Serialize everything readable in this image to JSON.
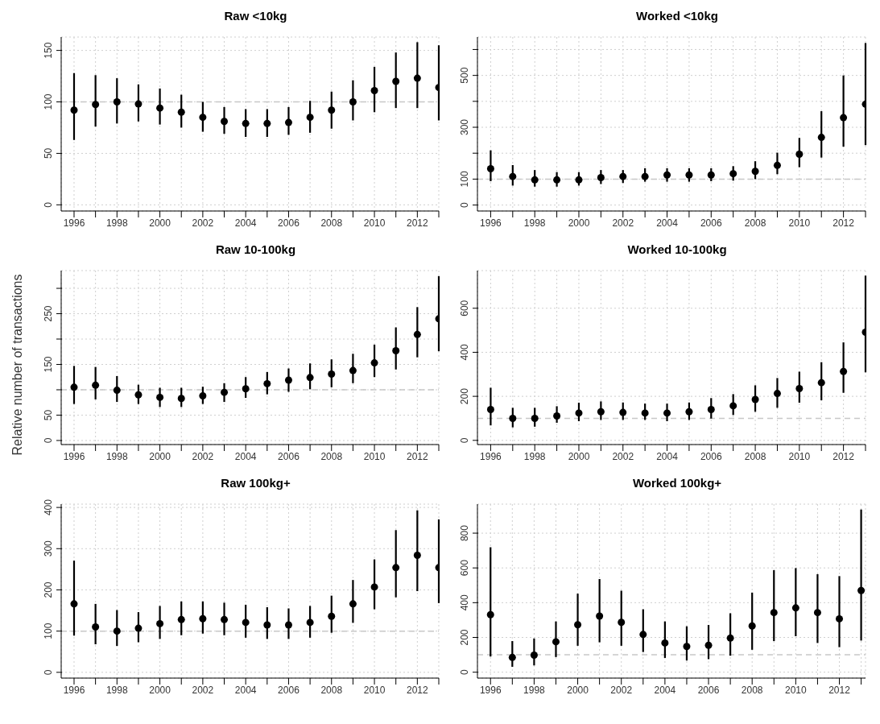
{
  "chart_data": [
    {
      "type": "scatter",
      "title": "Raw <10kg",
      "x": [
        1996,
        1997,
        1998,
        1999,
        2000,
        2001,
        2002,
        2003,
        2004,
        2005,
        2006,
        2007,
        2008,
        2009,
        2010,
        2011,
        2012,
        2013
      ],
      "marker": "circle",
      "grid": true,
      "xlim": [
        1995.4,
        2013
      ],
      "xticks": [
        1996,
        {
          "value": 1997,
          "label": null
        },
        1998,
        {
          "value": 1999,
          "label": null
        },
        2000,
        {
          "value": 2001,
          "label": null
        },
        2002,
        {
          "value": 2003,
          "label": null
        },
        2004,
        {
          "value": 2005,
          "label": null
        },
        2006,
        {
          "value": 2007,
          "label": null
        },
        2008,
        {
          "value": 2009,
          "label": null
        },
        2010,
        {
          "value": 2011,
          "label": null
        },
        2012,
        {
          "value": 2013,
          "label": null
        }
      ],
      "ylim": [
        -6,
        163
      ],
      "yticks": [
        0,
        50,
        100,
        150
      ],
      "ref_lines": [
        {
          "axis": "y",
          "value": 100,
          "label": null,
          "color": "#c8c8c8",
          "line_style": "dashed"
        }
      ],
      "series": [
        {
          "color": "#000000",
          "values": [
            92,
            97.5,
            100,
            98,
            94,
            90,
            85,
            81,
            79,
            79,
            80,
            85,
            92,
            100,
            111,
            120,
            123,
            114
          ],
          "errors": [
            [
              63,
              128
            ],
            [
              76,
              126
            ],
            [
              79,
              123
            ],
            [
              81,
              117
            ],
            [
              78,
              113
            ],
            [
              75,
              107
            ],
            [
              71,
              100
            ],
            [
              69,
              95
            ],
            [
              66,
              93
            ],
            [
              66,
              93
            ],
            [
              68,
              95
            ],
            [
              70,
              101
            ],
            [
              74,
              110
            ],
            [
              82,
              121
            ],
            [
              90,
              134
            ],
            [
              94,
              148
            ],
            [
              94,
              158
            ],
            [
              82,
              155
            ]
          ]
        }
      ]
    },
    {
      "type": "scatter",
      "title": "Worked <10kg",
      "x": [
        1996,
        1997,
        1998,
        1999,
        2000,
        2001,
        2002,
        2003,
        2004,
        2005,
        2006,
        2007,
        2008,
        2009,
        2010,
        2011,
        2012,
        2013
      ],
      "marker": "circle",
      "grid": true,
      "xlim": [
        1995.4,
        2013
      ],
      "xticks": [
        1996,
        {
          "value": 1997,
          "label": null
        },
        1998,
        {
          "value": 1999,
          "label": null
        },
        2000,
        {
          "value": 2001,
          "label": null
        },
        2002,
        {
          "value": 2003,
          "label": null
        },
        2004,
        {
          "value": 2005,
          "label": null
        },
        2006,
        {
          "value": 2007,
          "label": null
        },
        2008,
        {
          "value": 2009,
          "label": null
        },
        2010,
        {
          "value": 2011,
          "label": null
        },
        2012,
        {
          "value": 2013,
          "label": null
        }
      ],
      "ylim": [
        -23,
        648
      ],
      "yticks": [
        0,
        100,
        {
          "value": 200,
          "label": null
        },
        300,
        {
          "value": 400,
          "label": null
        },
        500,
        {
          "value": 600,
          "label": null
        }
      ],
      "ref_lines": [
        {
          "axis": "y",
          "value": 100,
          "label": null,
          "color": "#c8c8c8",
          "line_style": "dashed"
        }
      ],
      "series": [
        {
          "color": "#000000",
          "values": [
            140,
            110,
            97,
            97,
            97,
            106,
            110,
            110,
            116,
            116,
            116,
            121,
            130,
            153,
            196,
            261,
            337,
            389
          ],
          "errors": [
            [
              92,
              211
            ],
            [
              75,
              154
            ],
            [
              71,
              135
            ],
            [
              71,
              127
            ],
            [
              75,
              127
            ],
            [
              81,
              135
            ],
            [
              85,
              135
            ],
            [
              90,
              142
            ],
            [
              90,
              142
            ],
            [
              90,
              142
            ],
            [
              92,
              142
            ],
            [
              94,
              150
            ],
            [
              100,
              169
            ],
            [
              119,
              202
            ],
            [
              146,
              259
            ],
            [
              183,
              362
            ],
            [
              225,
              500
            ],
            [
              231,
              625
            ]
          ]
        }
      ]
    },
    {
      "type": "scatter",
      "title": "Raw 10-100kg",
      "ylabel": "Relative number of transactions",
      "x": [
        1996,
        1997,
        1998,
        1999,
        2000,
        2001,
        2002,
        2003,
        2004,
        2005,
        2006,
        2007,
        2008,
        2009,
        2010,
        2011,
        2012,
        2013
      ],
      "marker": "circle",
      "grid": true,
      "xlim": [
        1995.4,
        2013
      ],
      "xticks": [
        1996,
        {
          "value": 1997,
          "label": null
        },
        1998,
        {
          "value": 1999,
          "label": null
        },
        2000,
        {
          "value": 2001,
          "label": null
        },
        2002,
        {
          "value": 2003,
          "label": null
        },
        2004,
        {
          "value": 2005,
          "label": null
        },
        2006,
        {
          "value": 2007,
          "label": null
        },
        2008,
        {
          "value": 2009,
          "label": null
        },
        2010,
        {
          "value": 2011,
          "label": null
        },
        2012,
        {
          "value": 2013,
          "label": null
        }
      ],
      "ylim": [
        -8,
        335
      ],
      "yticks": [
        0,
        50,
        {
          "value": 100,
          "label": null
        },
        150,
        {
          "value": 200,
          "label": null
        },
        250,
        {
          "value": 300,
          "label": null
        }
      ],
      "ref_lines": [
        {
          "axis": "y",
          "value": 100,
          "label": null,
          "color": "#c8c8c8",
          "line_style": "dashed"
        }
      ],
      "series": [
        {
          "color": "#000000",
          "values": [
            105,
            109,
            99,
            90,
            85,
            83,
            88,
            95,
            102,
            112,
            119,
            124,
            131,
            138,
            153,
            177,
            209,
            240
          ],
          "errors": [
            [
              72,
              147
            ],
            [
              81,
              145
            ],
            [
              76,
              127
            ],
            [
              72,
              110
            ],
            [
              66,
              104
            ],
            [
              66,
              104
            ],
            [
              72,
              106
            ],
            [
              76,
              113
            ],
            [
              84,
              125
            ],
            [
              91,
              135
            ],
            [
              96,
              142
            ],
            [
              101,
              152
            ],
            [
              105,
              160
            ],
            [
              113,
              171
            ],
            [
              125,
              189
            ],
            [
              140,
              223
            ],
            [
              164,
              263
            ],
            [
              176,
              324
            ]
          ]
        }
      ]
    },
    {
      "type": "scatter",
      "title": "Worked 10-100kg",
      "x": [
        1996,
        1997,
        1998,
        1999,
        2000,
        2001,
        2002,
        2003,
        2004,
        2005,
        2006,
        2007,
        2008,
        2009,
        2010,
        2011,
        2012,
        2013
      ],
      "marker": "circle",
      "grid": true,
      "xlim": [
        1995.4,
        2013
      ],
      "xticks": [
        1996,
        {
          "value": 1997,
          "label": null
        },
        1998,
        {
          "value": 1999,
          "label": null
        },
        2000,
        {
          "value": 2001,
          "label": null
        },
        2002,
        {
          "value": 2003,
          "label": null
        },
        2004,
        {
          "value": 2005,
          "label": null
        },
        2006,
        {
          "value": 2007,
          "label": null
        },
        2008,
        {
          "value": 2009,
          "label": null
        },
        2010,
        {
          "value": 2011,
          "label": null
        },
        2012,
        {
          "value": 2013,
          "label": null
        }
      ],
      "ylim": [
        -19,
        771
      ],
      "yticks": [
        0,
        200,
        400,
        600
      ],
      "ref_lines": [
        {
          "axis": "y",
          "value": 100,
          "label": null,
          "color": "#c8c8c8",
          "line_style": "dashed"
        }
      ],
      "series": [
        {
          "color": "#000000",
          "values": [
            140,
            100,
            100,
            111,
            124,
            130,
            127,
            124,
            124,
            130,
            140,
            157,
            186,
            213,
            235,
            262,
            313,
            491
          ],
          "errors": [
            [
              68,
              239
            ],
            [
              59,
              148
            ],
            [
              62,
              148
            ],
            [
              80,
              155
            ],
            [
              87,
              171
            ],
            [
              93,
              177
            ],
            [
              93,
              172
            ],
            [
              93,
              167
            ],
            [
              87,
              167
            ],
            [
              93,
              172
            ],
            [
              99,
              192
            ],
            [
              115,
              210
            ],
            [
              130,
              250
            ],
            [
              148,
              283
            ],
            [
              171,
              312
            ],
            [
              182,
              355
            ],
            [
              216,
              445
            ],
            [
              309,
              748
            ]
          ]
        }
      ]
    },
    {
      "type": "scatter",
      "title": "Raw 100kg+",
      "x": [
        1996,
        1997,
        1998,
        1999,
        2000,
        2001,
        2002,
        2003,
        2004,
        2005,
        2006,
        2007,
        2008,
        2009,
        2010,
        2011,
        2012,
        2013
      ],
      "marker": "circle",
      "grid": true,
      "xlim": [
        1995.4,
        2013
      ],
      "xticks": [
        1996,
        {
          "value": 1997,
          "label": null
        },
        1998,
        {
          "value": 1999,
          "label": null
        },
        2000,
        {
          "value": 2001,
          "label": null
        },
        2002,
        {
          "value": 2003,
          "label": null
        },
        2004,
        {
          "value": 2005,
          "label": null
        },
        2006,
        {
          "value": 2007,
          "label": null
        },
        2008,
        {
          "value": 2009,
          "label": null
        },
        2010,
        {
          "value": 2011,
          "label": null
        },
        2012,
        {
          "value": 2013,
          "label": null
        }
      ],
      "ylim": [
        -14,
        408
      ],
      "yticks": [
        0,
        100,
        200,
        300,
        400
      ],
      "ref_lines": [
        {
          "axis": "y",
          "value": 100,
          "label": null,
          "color": "#c8c8c8",
          "line_style": "dashed"
        }
      ],
      "series": [
        {
          "color": "#000000",
          "values": [
            166,
            110,
            100,
            107,
            118,
            128,
            130,
            128,
            121,
            115,
            115,
            121,
            136,
            166,
            207,
            254,
            284,
            254
          ],
          "errors": [
            [
              89,
              271
            ],
            [
              68,
              166
            ],
            [
              64,
              151
            ],
            [
              73,
              146
            ],
            [
              81,
              161
            ],
            [
              90,
              172
            ],
            [
              94,
              172
            ],
            [
              90,
              169
            ],
            [
              84,
              164
            ],
            [
              81,
              158
            ],
            [
              81,
              155
            ],
            [
              84,
              161
            ],
            [
              96,
              186
            ],
            [
              120,
              224
            ],
            [
              153,
              274
            ],
            [
              182,
              345
            ],
            [
              197,
              393
            ],
            [
              168,
              371
            ]
          ]
        }
      ]
    },
    {
      "type": "scatter",
      "title": "Worked 100kg+",
      "x": [
        1996,
        1997,
        1998,
        1999,
        2000,
        2001,
        2002,
        2003,
        2004,
        2005,
        2006,
        2007,
        2008,
        2009,
        2010,
        2011,
        2012,
        2013
      ],
      "marker": "circle",
      "grid": true,
      "xlim": [
        1995.4,
        2013.2
      ],
      "xticks": [
        1996,
        {
          "value": 1997,
          "label": null
        },
        1998,
        {
          "value": 1999,
          "label": null
        },
        2000,
        {
          "value": 2001,
          "label": null
        },
        2002,
        {
          "value": 2003,
          "label": null
        },
        2004,
        {
          "value": 2005,
          "label": null
        },
        2006,
        {
          "value": 2007,
          "label": null
        },
        2008,
        {
          "value": 2009,
          "label": null
        },
        2010,
        {
          "value": 2011,
          "label": null
        },
        2012,
        {
          "value": 2013,
          "label": null
        }
      ],
      "ylim": [
        -34,
        967
      ],
      "yticks": [
        0,
        200,
        400,
        600,
        800
      ],
      "ref_lines": [
        {
          "axis": "y",
          "value": 100,
          "label": null,
          "color": "#c8c8c8",
          "line_style": "dashed"
        }
      ],
      "series": [
        {
          "color": "#000000",
          "values": [
            331,
            85,
            98,
            175,
            273,
            323,
            287,
            217,
            168,
            148,
            155,
            196,
            266,
            343,
            370,
            343,
            307,
            470
          ],
          "errors": [
            [
              90,
              719
            ],
            [
              31,
              179
            ],
            [
              39,
              194
            ],
            [
              87,
              292
            ],
            [
              152,
              452
            ],
            [
              172,
              536
            ],
            [
              152,
              469
            ],
            [
              116,
              362
            ],
            [
              82,
              292
            ],
            [
              67,
              264
            ],
            [
              75,
              272
            ],
            [
              95,
              339
            ],
            [
              129,
              458
            ],
            [
              179,
              587
            ],
            [
              207,
              599
            ],
            [
              168,
              564
            ],
            [
              144,
              553
            ],
            [
              182,
              936
            ]
          ]
        }
      ]
    }
  ]
}
